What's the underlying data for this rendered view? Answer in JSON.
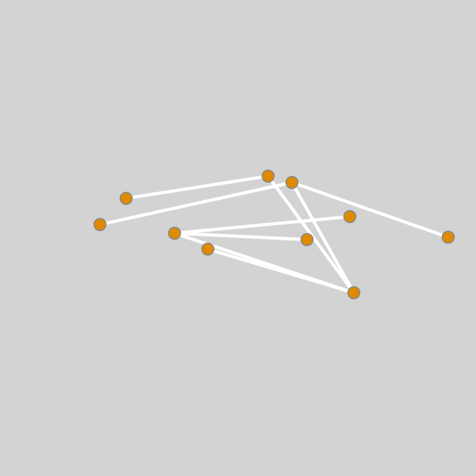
{
  "puzzle": {
    "type": "untangle-graph",
    "colors": {
      "background": "#d3d3d3",
      "edge": "#ffffff",
      "node_fill": "#e08a00",
      "node_stroke": "#888888"
    },
    "nodes": [
      {
        "id": "n1"
      },
      {
        "id": "n2"
      },
      {
        "id": "n3"
      },
      {
        "id": "n4"
      },
      {
        "id": "n5"
      },
      {
        "id": "n6"
      },
      {
        "id": "n7"
      },
      {
        "id": "n8"
      },
      {
        "id": "n9"
      },
      {
        "id": "n10"
      }
    ],
    "edges": [
      {
        "from": "n1",
        "to": "n4"
      },
      {
        "from": "n2",
        "to": "n3"
      },
      {
        "from": "n3",
        "to": "n9"
      },
      {
        "from": "n4",
        "to": "n9"
      },
      {
        "from": "n4",
        "to": "n10"
      },
      {
        "from": "n5",
        "to": "n6"
      },
      {
        "from": "n5",
        "to": "n8"
      },
      {
        "from": "n5",
        "to": "n9"
      },
      {
        "from": "n7",
        "to": "n9"
      }
    ]
  }
}
